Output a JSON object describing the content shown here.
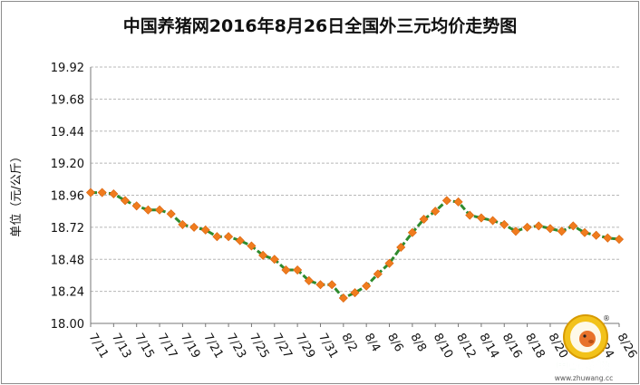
{
  "chart_data": {
    "type": "line",
    "title": "中国养猪网2016年8月26日全国外三元均价走势图",
    "ylabel": "单位（元/公斤）",
    "xlabel": "",
    "ylim": [
      18.0,
      19.92
    ],
    "yticks": [
      "18.00",
      "18.24",
      "18.48",
      "18.72",
      "18.96",
      "19.20",
      "19.44",
      "19.68",
      "19.92"
    ],
    "xticks": [
      "7/11",
      "7/13",
      "7/15",
      "7/17",
      "7/19",
      "7/21",
      "7/23",
      "7/25",
      "7/27",
      "7/29",
      "7/31",
      "8/2",
      "8/4",
      "8/6",
      "8/8",
      "8/10",
      "8/12",
      "8/14",
      "8/16",
      "8/18",
      "8/20",
      "8/22",
      "8/24",
      "8/26"
    ],
    "grid": true,
    "line_color": "#2e8b2e",
    "marker_color": "#f07c1e",
    "series": [
      {
        "values": [
          18.98,
          18.98,
          18.97,
          18.92,
          18.88,
          18.85,
          18.85,
          18.82,
          18.74,
          18.72,
          18.7,
          18.65,
          18.65,
          18.62,
          18.58,
          18.51,
          18.48,
          18.4,
          18.4,
          18.32,
          18.29,
          18.29,
          18.19,
          18.23,
          18.28,
          18.37,
          18.45,
          18.57,
          18.68,
          18.78,
          18.84,
          18.92,
          18.91,
          18.81,
          18.79,
          18.77,
          18.74,
          18.69,
          18.72,
          18.73,
          18.71,
          18.69,
          18.73,
          18.68,
          18.66,
          18.64,
          18.63
        ]
      }
    ]
  },
  "watermark": {
    "brand": "中国养猪网",
    "url": "www.zhuwang.cc",
    "mark": "®"
  }
}
